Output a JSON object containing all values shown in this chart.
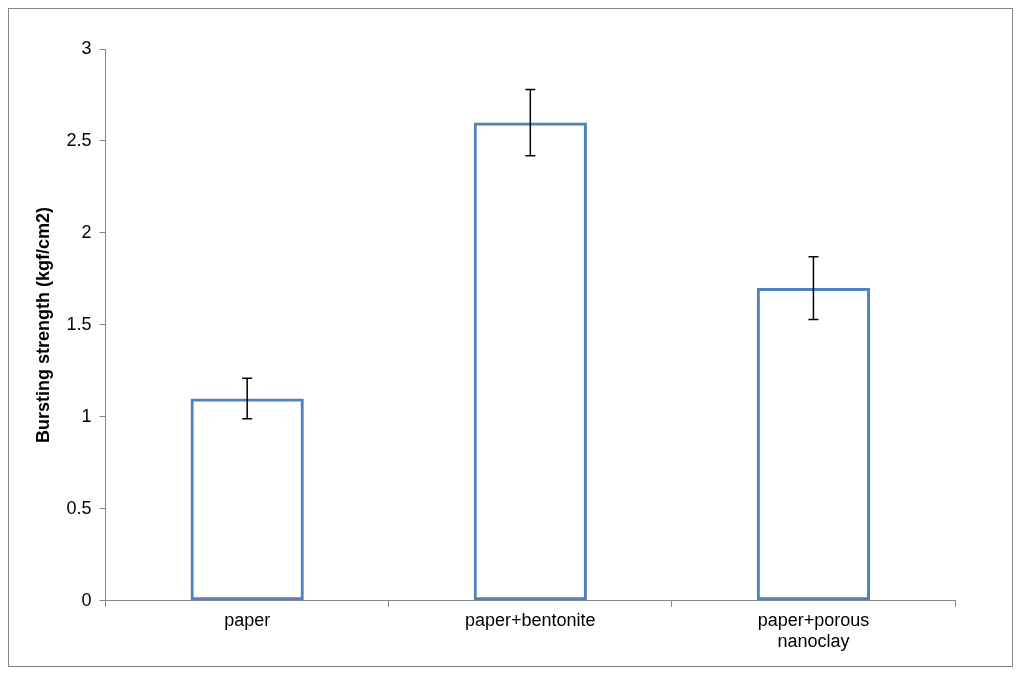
{
  "chart_data": {
    "type": "bar",
    "categories": [
      "paper",
      "paper+bentonite",
      "paper+porous nanoclay"
    ],
    "values": [
      1.1,
      2.6,
      1.7
    ],
    "errors": [
      0.11,
      0.18,
      0.17
    ],
    "color": "#4f81bd",
    "ylabel": "Bursting strength (kgf/cm2)",
    "ylim": [
      0,
      3
    ],
    "yticks": [
      0,
      0.5,
      1,
      1.5,
      2,
      2.5,
      3
    ],
    "grid": false,
    "legend": false
  }
}
